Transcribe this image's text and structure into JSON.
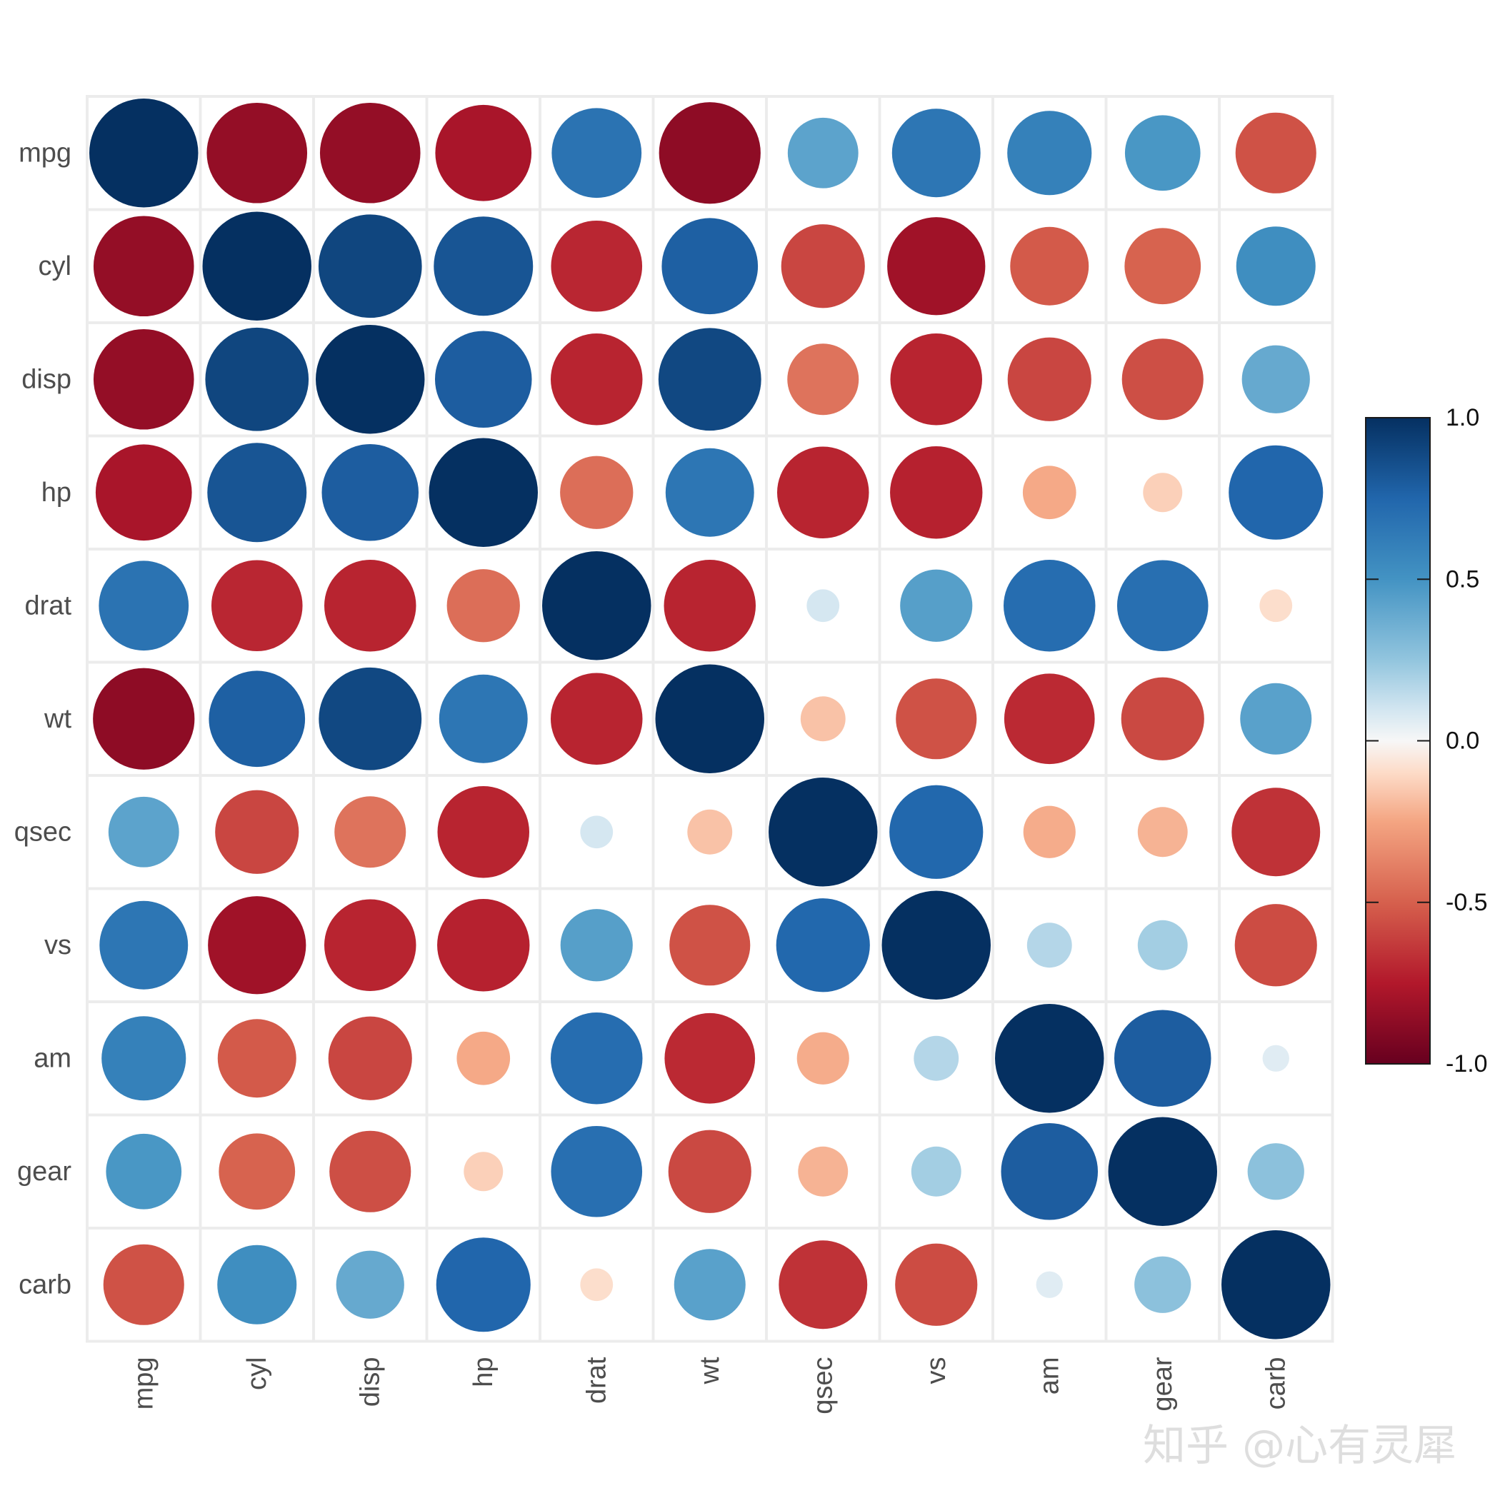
{
  "chart_data": {
    "type": "heatmap",
    "variables": [
      "mpg",
      "cyl",
      "disp",
      "hp",
      "drat",
      "wt",
      "qsec",
      "vs",
      "am",
      "gear",
      "carb"
    ],
    "matrix": [
      [
        1.0,
        -0.85,
        -0.85,
        -0.78,
        0.68,
        -0.87,
        0.42,
        0.66,
        0.6,
        0.48,
        -0.55
      ],
      [
        -0.85,
        1.0,
        0.9,
        0.83,
        -0.7,
        0.78,
        -0.59,
        -0.81,
        -0.52,
        -0.49,
        0.53
      ],
      [
        -0.85,
        0.9,
        1.0,
        0.79,
        -0.71,
        0.89,
        -0.43,
        -0.71,
        -0.59,
        -0.56,
        0.39
      ],
      [
        -0.78,
        0.83,
        0.79,
        1.0,
        -0.45,
        0.66,
        -0.71,
        -0.72,
        -0.24,
        -0.13,
        0.75
      ],
      [
        0.68,
        -0.7,
        -0.71,
        -0.45,
        1.0,
        -0.71,
        0.09,
        0.44,
        0.71,
        0.7,
        -0.09
      ],
      [
        -0.87,
        0.78,
        0.89,
        0.66,
        -0.71,
        1.0,
        -0.17,
        -0.55,
        -0.69,
        -0.58,
        0.43
      ],
      [
        0.42,
        -0.59,
        -0.43,
        -0.71,
        0.09,
        -0.17,
        1.0,
        0.74,
        -0.23,
        -0.21,
        -0.66
      ],
      [
        0.66,
        -0.81,
        -0.71,
        -0.72,
        0.44,
        -0.55,
        0.74,
        1.0,
        0.17,
        0.21,
        -0.57
      ],
      [
        0.6,
        -0.52,
        -0.59,
        -0.24,
        0.71,
        -0.69,
        -0.23,
        0.17,
        1.0,
        0.79,
        0.06
      ],
      [
        0.48,
        -0.49,
        -0.56,
        -0.13,
        0.7,
        -0.58,
        -0.21,
        0.21,
        0.79,
        1.0,
        0.27
      ],
      [
        -0.55,
        0.53,
        0.39,
        0.75,
        -0.09,
        0.43,
        -0.66,
        -0.57,
        0.06,
        0.27,
        1.0
      ]
    ],
    "color_scale": {
      "min": -1.0,
      "max": 1.0,
      "stops": [
        {
          "value": -1.0,
          "color": "#67001f"
        },
        {
          "value": -0.75,
          "color": "#b2182b"
        },
        {
          "value": -0.5,
          "color": "#d6604d"
        },
        {
          "value": -0.25,
          "color": "#f4a582"
        },
        {
          "value": -0.1,
          "color": "#fddbc7"
        },
        {
          "value": 0.0,
          "color": "#f7f7f7"
        },
        {
          "value": 0.1,
          "color": "#d1e5f0"
        },
        {
          "value": 0.25,
          "color": "#92c5de"
        },
        {
          "value": 0.5,
          "color": "#4393c3"
        },
        {
          "value": 0.75,
          "color": "#2166ac"
        },
        {
          "value": 1.0,
          "color": "#053061"
        }
      ]
    },
    "legend": {
      "position": "right",
      "ticks": [
        "1.0",
        "0.5",
        "0.0",
        "-0.5",
        "-1.0"
      ],
      "tick_values": [
        1.0,
        0.5,
        0.0,
        -0.5,
        -1.0
      ]
    },
    "marker": "circle",
    "size_encodes": "absolute correlation",
    "grid": true,
    "title": "",
    "xlabel": "",
    "ylabel": ""
  },
  "watermark": {
    "text": "知乎 @心有灵犀"
  },
  "colors": {
    "grid_line": "#ececec",
    "axis_text": "#4d4d4d",
    "legend_outline": "#1a1a1a"
  }
}
